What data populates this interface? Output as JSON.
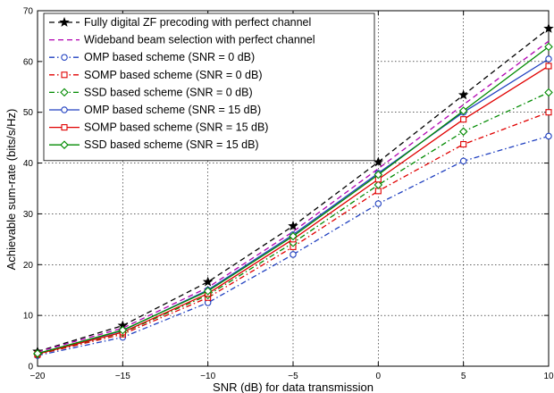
{
  "chart_data": {
    "type": "line",
    "title": "",
    "xlabel": "SNR (dB) for data transmission",
    "ylabel": "Achievable sum-rate (bits/s/Hz)",
    "xlim": [
      -20,
      10
    ],
    "ylim": [
      0,
      70
    ],
    "xticks": [
      -20,
      -15,
      -10,
      -5,
      0,
      5,
      10
    ],
    "yticks": [
      0,
      10,
      20,
      30,
      40,
      50,
      60,
      70
    ],
    "grid": true,
    "legend_position": "top-left",
    "x": [
      -20,
      -15,
      -10,
      -5,
      0,
      5,
      10
    ],
    "series": [
      {
        "name": "Fully digital ZF precoding with perfect channel",
        "values": [
          2.9,
          8.0,
          16.6,
          27.6,
          40.2,
          53.4,
          66.5
        ],
        "color": "#000000",
        "dash": "dashed",
        "marker": "star"
      },
      {
        "name": "Wideband beam selection with perfect channel",
        "values": [
          2.8,
          7.5,
          15.5,
          26.5,
          38.9,
          51.5,
          64.0
        ],
        "color": "#b000b0",
        "dash": "dashed",
        "marker": "none"
      },
      {
        "name": "OMP based scheme (SNR = 0 dB)",
        "values": [
          2.1,
          5.7,
          12.5,
          22.0,
          32.0,
          40.4,
          45.3
        ],
        "color": "#2040c0",
        "dash": "dashdot",
        "marker": "circle"
      },
      {
        "name": "SOMP based scheme (SNR = 0 dB)",
        "values": [
          2.3,
          6.3,
          13.5,
          23.5,
          34.5,
          43.7,
          50.0
        ],
        "color": "#e00000",
        "dash": "dashdot",
        "marker": "square"
      },
      {
        "name": "SSD based scheme (SNR = 0 dB)",
        "values": [
          2.4,
          6.6,
          14.0,
          24.3,
          35.7,
          46.2,
          53.9
        ],
        "color": "#008a00",
        "dash": "dashdot",
        "marker": "diamond"
      },
      {
        "name": "OMP based scheme (SNR = 15 dB)",
        "values": [
          2.5,
          7.0,
          15.0,
          25.9,
          38.0,
          50.0,
          60.5
        ],
        "color": "#2040c0",
        "dash": "solid",
        "marker": "circle"
      },
      {
        "name": "SOMP based scheme (SNR = 15 dB)",
        "values": [
          2.4,
          6.7,
          14.3,
          25.0,
          36.8,
          48.6,
          59.1
        ],
        "color": "#e00000",
        "dash": "solid",
        "marker": "square"
      },
      {
        "name": "SSD based scheme (SNR = 15 dB)",
        "values": [
          2.5,
          7.1,
          14.8,
          25.6,
          37.7,
          50.3,
          62.9
        ],
        "color": "#008a00",
        "dash": "solid",
        "marker": "diamond"
      }
    ]
  }
}
